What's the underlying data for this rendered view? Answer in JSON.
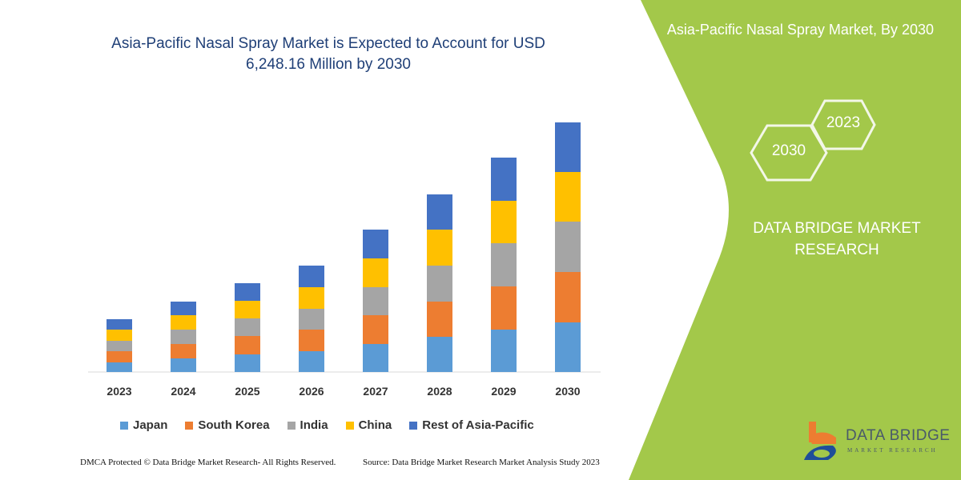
{
  "title": "Asia-Pacific Nasal Spray Market is Expected to Account for USD 6,248.16 Million by 2030",
  "right_panel": {
    "title": "Asia-Pacific Nasal Spray Market, By 2030",
    "hex_front": "2030",
    "hex_back": "2023",
    "brand": "DATA BRIDGE MARKET RESEARCH",
    "logo_text": "DATA BRIDGE",
    "logo_sub": "MARKET RESEARCH",
    "color": "#a3c84a"
  },
  "footer": {
    "left": "DMCA Protected © Data Bridge Market Research-  All Rights Reserved.",
    "right": "Source: Data Bridge Market Research  Market Analysis Study 2023"
  },
  "chart_data": {
    "type": "bar",
    "stacked": true,
    "title": "Asia-Pacific Nasal Spray Market is Expected to Account for USD 6,248.16 Million by 2030",
    "categories": [
      "2023",
      "2024",
      "2025",
      "2026",
      "2027",
      "2028",
      "2029",
      "2030"
    ],
    "series": [
      {
        "name": "Japan",
        "color": "#5b9bd5",
        "values": [
          12,
          17,
          22,
          26,
          35,
          44,
          53,
          62
        ]
      },
      {
        "name": "South Korea",
        "color": "#ed7d31",
        "values": [
          14,
          18,
          23,
          27,
          36,
          44,
          54,
          63
        ]
      },
      {
        "name": "India",
        "color": "#a5a5a5",
        "values": [
          13,
          18,
          22,
          26,
          35,
          45,
          54,
          63
        ]
      },
      {
        "name": "China",
        "color": "#ffc000",
        "values": [
          14,
          18,
          22,
          27,
          36,
          45,
          53,
          62
        ]
      },
      {
        "name": "Rest of Asia-Pacific",
        "color": "#4472c4",
        "values": [
          13,
          17,
          22,
          27,
          36,
          44,
          54,
          62
        ]
      }
    ],
    "xlabel": "",
    "ylabel": "",
    "y_axis_shown": false,
    "grid": false,
    "legend": "bottom"
  }
}
